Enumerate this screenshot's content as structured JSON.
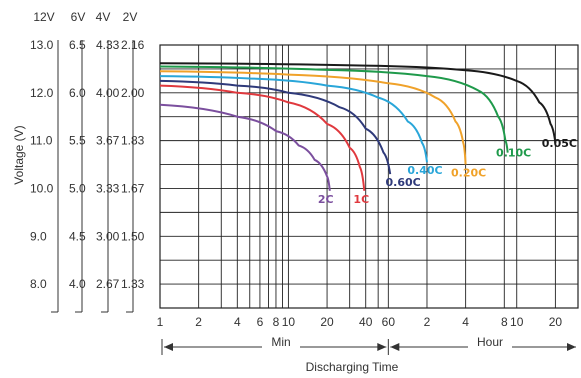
{
  "chart_data": {
    "type": "line",
    "ylabel": "Voltage (V)",
    "xlabel": "Discharging Time",
    "x_scale": "log",
    "x_unit_minutes_label": "Min",
    "x_unit_hours_label": "Hour",
    "x_ticks_min": [
      "1",
      "2",
      "4",
      "6",
      "8",
      "10",
      "20",
      "40",
      "60"
    ],
    "x_ticks_hour": [
      "2",
      "4",
      "8",
      "10",
      "20"
    ],
    "voltage_scales": [
      {
        "name": "12V",
        "ticks": [
          "13.0",
          "12.0",
          "11.0",
          "10.0",
          "9.0",
          "8.0"
        ]
      },
      {
        "name": "6V",
        "ticks": [
          "6.5",
          "6.0",
          "5.5",
          "5.0",
          "4.5",
          "4.0"
        ]
      },
      {
        "name": "4V",
        "ticks": [
          "4.33",
          "4.00",
          "3.67",
          "3.33",
          "3.00",
          "2.67"
        ]
      },
      {
        "name": "2V",
        "ticks": [
          "2.16",
          "2.00",
          "1.83",
          "1.67",
          "1.50",
          "1.33"
        ]
      }
    ],
    "ylim": [
      7.5,
      13.0
    ],
    "xlim_minutes": [
      1,
      1800
    ],
    "series": [
      {
        "name": "2C",
        "color": "#7b4f9e",
        "end_minutes": 21,
        "points": [
          [
            1,
            11.75
          ],
          [
            4,
            11.5
          ],
          [
            8,
            11.2
          ],
          [
            12,
            10.9
          ],
          [
            16,
            10.6
          ],
          [
            20,
            10.25
          ],
          [
            21,
            9.95
          ]
        ]
      },
      {
        "name": "1C",
        "color": "#e0393e",
        "end_minutes": 39,
        "points": [
          [
            1,
            12.15
          ],
          [
            4,
            12.0
          ],
          [
            10,
            11.8
          ],
          [
            20,
            11.35
          ],
          [
            30,
            10.85
          ],
          [
            36,
            10.45
          ],
          [
            39,
            9.95
          ]
        ]
      },
      {
        "name": "0.60C",
        "color": "#2f3a7a",
        "end_minutes": 62,
        "points": [
          [
            1,
            12.25
          ],
          [
            4,
            12.15
          ],
          [
            10,
            12.0
          ],
          [
            25,
            11.7
          ],
          [
            40,
            11.25
          ],
          [
            55,
            10.75
          ],
          [
            62,
            10.3
          ]
        ]
      },
      {
        "name": "0.40C",
        "color": "#29a6d9",
        "end_minutes": 120,
        "points": [
          [
            1,
            12.35
          ],
          [
            5,
            12.3
          ],
          [
            20,
            12.15
          ],
          [
            50,
            11.9
          ],
          [
            85,
            11.4
          ],
          [
            110,
            10.95
          ],
          [
            120,
            10.55
          ]
        ]
      },
      {
        "name": "0.20C",
        "color": "#f0a22a",
        "end_minutes": 240,
        "points": [
          [
            1,
            12.45
          ],
          [
            10,
            12.38
          ],
          [
            60,
            12.2
          ],
          [
            140,
            11.9
          ],
          [
            200,
            11.4
          ],
          [
            230,
            10.95
          ],
          [
            240,
            10.5
          ]
        ]
      },
      {
        "name": "0.10C",
        "color": "#1f9a4b",
        "end_minutes": 510,
        "points": [
          [
            1,
            12.55
          ],
          [
            20,
            12.48
          ],
          [
            120,
            12.35
          ],
          [
            300,
            12.05
          ],
          [
            430,
            11.5
          ],
          [
            490,
            11.0
          ],
          [
            510,
            10.75
          ]
        ]
      },
      {
        "name": "0.05C",
        "color": "#1a1a1a",
        "end_minutes": 1200,
        "points": [
          [
            1,
            12.62
          ],
          [
            40,
            12.57
          ],
          [
            240,
            12.47
          ],
          [
            600,
            12.25
          ],
          [
            900,
            11.8
          ],
          [
            1100,
            11.35
          ],
          [
            1200,
            10.95
          ]
        ]
      }
    ]
  }
}
